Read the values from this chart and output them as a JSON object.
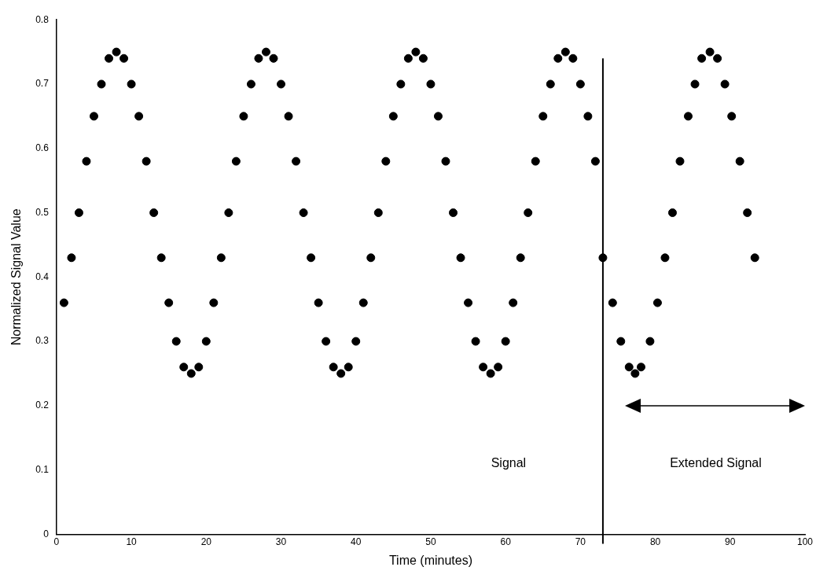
{
  "chart_data": {
    "type": "scatter",
    "xlabel": "Time (minutes)",
    "ylabel": "Normalized Signal Value",
    "xlim": [
      0,
      100
    ],
    "xticks": [
      0,
      10,
      20,
      30,
      40,
      50,
      60,
      70,
      80,
      90,
      100
    ],
    "ylim": [
      0,
      0.8
    ],
    "yticks": [
      0,
      0.1,
      0.2,
      0.3,
      0.4,
      0.5,
      0.6,
      0.7,
      0.8
    ],
    "grid": false,
    "legend": false,
    "marker": "circle",
    "ref_lines": [
      {
        "axis": "x",
        "value": 73,
        "color": "#000000"
      }
    ],
    "annotations": [
      "Signal",
      "Extended Signal"
    ],
    "series": [
      {
        "color": "#000000",
        "x": [
          1,
          2,
          3,
          4,
          5,
          6,
          7,
          8,
          9,
          10,
          11,
          12,
          13,
          14,
          15,
          16,
          17,
          18,
          19,
          20,
          21,
          22,
          23,
          24,
          25,
          26,
          27,
          28,
          29,
          30,
          31,
          32,
          33,
          34,
          35,
          36,
          37,
          38,
          39,
          40,
          41,
          42,
          43,
          44,
          45,
          46,
          47,
          48,
          49,
          50,
          51,
          52,
          53,
          54,
          55,
          56,
          57,
          58,
          59,
          60,
          61,
          62,
          63,
          64,
          65,
          66,
          67,
          68,
          69,
          70,
          71,
          72,
          73,
          74.3,
          75.4,
          76.5,
          77.3,
          78.1,
          79.3,
          80.3,
          81.3,
          82.3,
          83.3,
          84.4,
          85.3,
          86.2,
          87.3,
          88.3,
          89.3,
          90.2,
          91.3,
          92.3,
          93.3
        ],
        "values": [
          0.36,
          0.43,
          0.5,
          0.58,
          0.65,
          0.7,
          0.74,
          0.75,
          0.74,
          0.7,
          0.65,
          0.58,
          0.5,
          0.43,
          0.36,
          0.3,
          0.26,
          0.25,
          0.26,
          0.3,
          0.36,
          0.43,
          0.5,
          0.58,
          0.65,
          0.7,
          0.74,
          0.75,
          0.74,
          0.7,
          0.65,
          0.58,
          0.5,
          0.43,
          0.36,
          0.3,
          0.26,
          0.25,
          0.26,
          0.3,
          0.36,
          0.43,
          0.5,
          0.58,
          0.65,
          0.7,
          0.74,
          0.75,
          0.74,
          0.7,
          0.65,
          0.58,
          0.5,
          0.43,
          0.36,
          0.3,
          0.26,
          0.25,
          0.26,
          0.3,
          0.36,
          0.43,
          0.5,
          0.58,
          0.65,
          0.7,
          0.74,
          0.75,
          0.74,
          0.7,
          0.65,
          0.58,
          0.43,
          0.36,
          0.3,
          0.26,
          0.25,
          0.26,
          0.3,
          0.36,
          0.43,
          0.5,
          0.58,
          0.65,
          0.7,
          0.74,
          0.75,
          0.74,
          0.7,
          0.65,
          0.58,
          0.5,
          0.43
        ]
      }
    ]
  }
}
